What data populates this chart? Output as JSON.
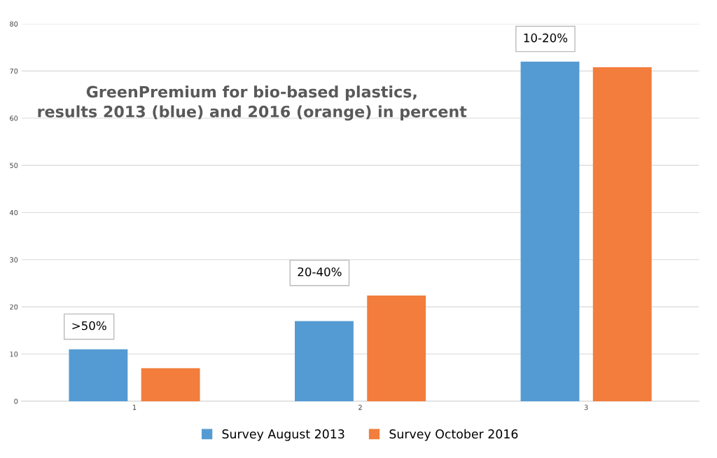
{
  "chart_data": {
    "type": "bar",
    "title": "GreenPremium for bio-based plastics,\nresults 2013 (blue) and 2016 (orange) in percent",
    "categories": [
      "1",
      "2",
      "3"
    ],
    "series": [
      {
        "name": "Survey August 2013",
        "color": "#559bd3",
        "values": [
          11,
          17,
          72
        ]
      },
      {
        "name": "Survey October 2016",
        "color": "#f27d3c",
        "values": [
          7,
          22.4,
          70.8
        ]
      }
    ],
    "annotations": [
      ">50%",
      "20-40%",
      "10-20%"
    ],
    "ylim": [
      0,
      80
    ],
    "yticks": [
      0,
      10,
      20,
      30,
      40,
      50,
      60,
      70,
      80
    ],
    "grid": "y",
    "legend": "bottom"
  }
}
